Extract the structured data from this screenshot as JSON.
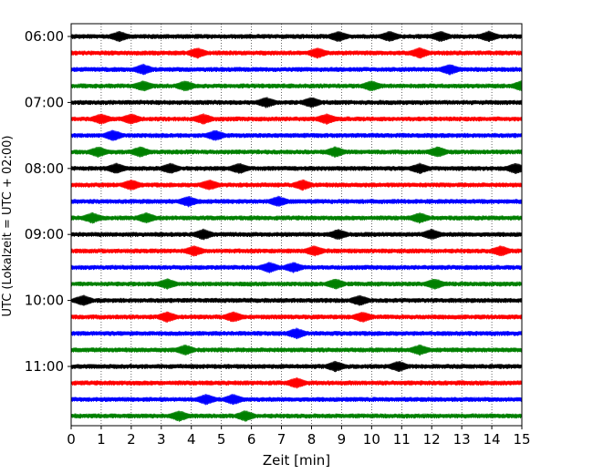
{
  "chart_data": {
    "type": "line",
    "xlabel": "Zeit  [min]",
    "ylabel": "UTC (Lokalzeit = UTC + 02:00)",
    "xlim": [
      0,
      15
    ],
    "x_ticks": [
      "0",
      "1",
      "2",
      "3",
      "4",
      "5",
      "6",
      "7",
      "8",
      "9",
      "10",
      "11",
      "12",
      "13",
      "14",
      "15"
    ],
    "y_ticks": [
      "06:00",
      "07:00",
      "08:00",
      "09:00",
      "10:00",
      "11:00"
    ],
    "grid": "vertical dotted",
    "rows_start": "06:00",
    "rows_interval_minutes": 15,
    "row_colors": [
      "#000000",
      "#ff0000",
      "#0000ff",
      "#008000"
    ],
    "series": [
      {
        "start": "06:00",
        "color": "#000000",
        "events_min": [
          1.6,
          8.9,
          10.6,
          12.3,
          13.9
        ]
      },
      {
        "start": "06:15",
        "color": "#ff0000",
        "events_min": [
          4.2,
          8.2,
          11.6
        ]
      },
      {
        "start": "06:30",
        "color": "#0000ff",
        "events_min": [
          2.4,
          12.6
        ]
      },
      {
        "start": "06:45",
        "color": "#008000",
        "events_min": [
          2.4,
          3.8,
          10.0,
          15.0
        ]
      },
      {
        "start": "07:00",
        "color": "#000000",
        "events_min": [
          6.5,
          8.0
        ]
      },
      {
        "start": "07:15",
        "color": "#ff0000",
        "events_min": [
          1.0,
          2.0,
          4.4,
          8.5
        ]
      },
      {
        "start": "07:30",
        "color": "#0000ff",
        "events_min": [
          1.4,
          4.8
        ]
      },
      {
        "start": "07:45",
        "color": "#008000",
        "events_min": [
          0.9,
          2.3,
          8.8,
          12.2
        ]
      },
      {
        "start": "08:00",
        "color": "#000000",
        "events_min": [
          1.5,
          3.3,
          5.6,
          11.6,
          14.8
        ]
      },
      {
        "start": "08:15",
        "color": "#ff0000",
        "events_min": [
          2.0,
          4.6,
          7.7
        ]
      },
      {
        "start": "08:30",
        "color": "#0000ff",
        "events_min": [
          3.9,
          6.9
        ]
      },
      {
        "start": "08:45",
        "color": "#008000",
        "events_min": [
          0.7,
          2.5,
          11.6
        ]
      },
      {
        "start": "09:00",
        "color": "#000000",
        "events_min": [
          4.4,
          8.9,
          12.0
        ]
      },
      {
        "start": "09:15",
        "color": "#ff0000",
        "events_min": [
          4.1,
          8.1,
          14.3
        ]
      },
      {
        "start": "09:30",
        "color": "#0000ff",
        "events_min": [
          6.6,
          7.4
        ]
      },
      {
        "start": "09:45",
        "color": "#008000",
        "events_min": [
          3.2,
          8.8,
          12.1
        ]
      },
      {
        "start": "10:00",
        "color": "#000000",
        "events_min": [
          0.4,
          9.6
        ]
      },
      {
        "start": "10:15",
        "color": "#ff0000",
        "events_min": [
          3.2,
          5.4,
          9.7
        ]
      },
      {
        "start": "10:30",
        "color": "#0000ff",
        "events_min": [
          7.5
        ]
      },
      {
        "start": "10:45",
        "color": "#008000",
        "events_min": [
          3.8,
          11.6
        ]
      },
      {
        "start": "11:00",
        "color": "#000000",
        "events_min": [
          8.8,
          10.9
        ]
      },
      {
        "start": "11:15",
        "color": "#ff0000",
        "events_min": [
          7.5
        ]
      },
      {
        "start": "11:30",
        "color": "#0000ff",
        "events_min": [
          4.5,
          5.4
        ]
      },
      {
        "start": "11:45",
        "color": "#008000",
        "events_min": [
          3.6,
          5.8
        ]
      }
    ]
  }
}
